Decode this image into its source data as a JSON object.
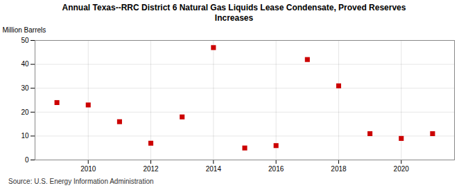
{
  "chart_data": {
    "type": "scatter",
    "title": "Annual Texas--RRC District 6 Natural Gas Liquids Lease Condensate, Proved Reserves\nIncreases",
    "ylabel": "Million Barrels",
    "annotations": [
      "Source: U.S. Energy Information Administration"
    ],
    "x": [
      2009,
      2010,
      2011,
      2012,
      2013,
      2014,
      2015,
      2016,
      2017,
      2018,
      2019,
      2020,
      2021
    ],
    "values": [
      24,
      23,
      16,
      7,
      18,
      47,
      5,
      6,
      42,
      31,
      11,
      9,
      11
    ],
    "color": "#cc0000",
    "marker": "square",
    "xlim": [
      2008.3,
      2021.7
    ],
    "xticks": [
      2010,
      2012,
      2014,
      2016,
      2018,
      2020
    ],
    "ylim": [
      0,
      50
    ],
    "yticks": [
      0,
      10,
      20,
      30,
      40,
      50
    ],
    "grid": true
  }
}
